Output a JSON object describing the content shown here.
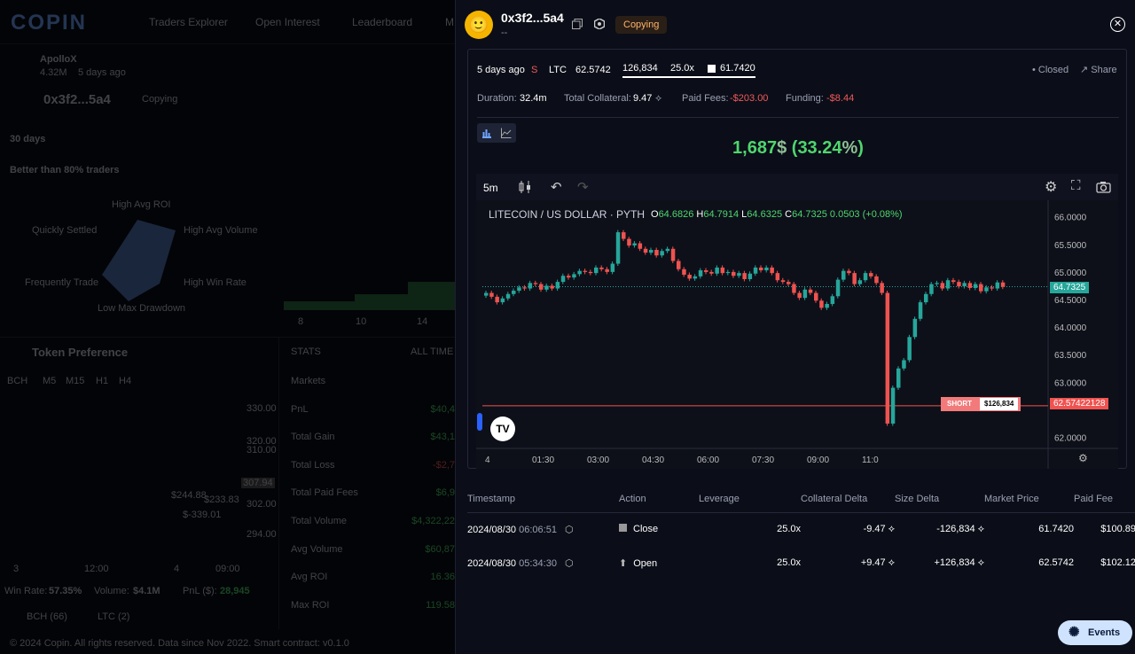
{
  "background": {
    "brand": "COPIN",
    "nav": [
      "Traders Explorer",
      "Open Interest",
      "Leaderboard",
      "M"
    ],
    "protocol": {
      "name": "ApolloX",
      "value": "4.32M",
      "time": "5 days ago"
    },
    "trader": {
      "address": "0x3f2...5a4",
      "copy_label": "Copying"
    },
    "period": "30 days",
    "better_than": "Better than 80% traders",
    "radar_labels": [
      "High Avg ROI",
      "Quickly Settled",
      "High Avg Volume",
      "Frequently Trade",
      "High Win Rate",
      "Low Max Drawdown"
    ],
    "area_ticks": [
      "8",
      "10",
      "14"
    ],
    "token_pref_title": "Token Preference",
    "mini_intervals": [
      "BCH",
      "M5",
      "M15",
      "H1",
      "H4"
    ],
    "mini_prices": [
      "330.00",
      "320.00",
      "310.00",
      "307.94",
      "302.00",
      "294.00"
    ],
    "mini_labels": [
      "$244.88",
      "$233.83",
      "$-339.01"
    ],
    "mini_xticks": [
      "3",
      "12:00",
      "4",
      "09:00"
    ],
    "stats_tab": "STATS",
    "all_time": "ALL TIME",
    "stats": [
      {
        "label": "Markets",
        "value": ""
      },
      {
        "label": "PnL",
        "value": "$40,4"
      },
      {
        "label": "Total Gain",
        "value": "$43,1"
      },
      {
        "label": "Total Loss",
        "value": "-$2,7"
      },
      {
        "label": "Total Paid Fees",
        "value": "$6,9"
      },
      {
        "label": "Total Volume",
        "value": "$4,322,22"
      },
      {
        "label": "Avg Volume",
        "value": "$60,87"
      },
      {
        "label": "Avg ROI",
        "value": "16.36"
      },
      {
        "label": "Max ROI",
        "value": "119.58"
      }
    ],
    "summary": {
      "win_rate_label": "Win Rate:",
      "win_rate": "57.35%",
      "volume_label": "Volume:",
      "volume": "$4.1M",
      "pnl_label": "PnL ($):",
      "pnl": "28,945"
    },
    "token_chips": [
      {
        "name": "BCH",
        "count": "(66)"
      },
      {
        "name": "LTC",
        "count": "(2)"
      }
    ],
    "footer": "© 2024 Copin. All rights reserved. Data since Nov 2022. Smart contract: v0.1.0"
  },
  "panel": {
    "address": "0x3f2...5a4",
    "subtitle": "--",
    "copy_badge": "Copying",
    "position": {
      "time": "5 days ago",
      "side": "S",
      "pair": "LTC",
      "entry": "62.5742",
      "size": "126,834",
      "leverage": "25.0x",
      "liq": "61.7420",
      "status": "Closed",
      "share": "Share"
    },
    "details": {
      "duration_label": "Duration:",
      "duration": "32.4m",
      "collateral_label": "Total Collateral:",
      "collateral": "9.47",
      "fees_label": "Paid Fees:",
      "fees": "-$203.00",
      "funding_label": "Funding:",
      "funding": "-$8.44"
    },
    "pnl": {
      "value": "1,687",
      "currency": "$",
      "roi": "33.24"
    },
    "chart_toolbar": {
      "interval": "5m"
    },
    "chart_legend": {
      "title": "LITECOIN / US DOLLAR · PYTH",
      "o_label": "O",
      "o": "64.6826",
      "h_label": "H",
      "h": "64.7914",
      "l_label": "L",
      "l": "64.6325",
      "c_label": "C",
      "c": "64.7325",
      "change": "0.0503 (+0.08%)"
    },
    "short_tag": {
      "label": "SHORT",
      "size": "$126,834"
    },
    "last_price_tag": "64.7325",
    "entry_price_tag": "62.57422128",
    "colors": {
      "up": "#26a69a",
      "down": "#ef5350",
      "green_profit": "#4fd66e",
      "bg": "#0b0e18"
    }
  },
  "chart_data": {
    "type": "candlestick",
    "title": "LITECOIN / US DOLLAR · PYTH",
    "ylim": [
      61.8,
      66.3
    ],
    "yticks": [
      "66.0000",
      "65.5000",
      "65.0000",
      "64.5000",
      "64.0000",
      "63.5000",
      "63.0000",
      "62.0000"
    ],
    "ytick_values": [
      66.0,
      65.5,
      65.0,
      64.5,
      64.0,
      63.5,
      63.0,
      62.0
    ],
    "xticks": [
      "4",
      "01:30",
      "03:00",
      "04:30",
      "06:00",
      "07:30",
      "09:00",
      "11:0"
    ],
    "x_tick_index": [
      0,
      10,
      20,
      30,
      40,
      50,
      60,
      70
    ],
    "close_line": 64.7325,
    "entry_line": 62.5742,
    "closes": [
      64.62,
      64.55,
      64.45,
      64.52,
      64.6,
      64.66,
      64.72,
      64.7,
      64.8,
      64.78,
      64.68,
      64.75,
      64.7,
      64.82,
      64.93,
      64.9,
      64.96,
      65.02,
      65.0,
      64.98,
      65.08,
      65.05,
      65.0,
      65.15,
      65.72,
      65.6,
      65.48,
      65.52,
      65.42,
      65.35,
      65.4,
      65.3,
      65.38,
      65.42,
      65.2,
      65.05,
      64.95,
      64.88,
      64.92,
      65.03,
      65.0,
      64.97,
      65.08,
      64.98,
      65.0,
      64.93,
      64.98,
      64.87,
      64.97,
      65.08,
      65.03,
      65.08,
      64.98,
      64.85,
      64.82,
      64.78,
      64.62,
      64.53,
      64.68,
      64.62,
      64.48,
      64.35,
      64.42,
      64.56,
      64.86,
      65.02,
      64.98,
      64.78,
      64.85,
      64.98,
      64.92,
      64.8,
      64.62,
      62.25,
      62.9,
      63.25,
      63.4,
      63.82,
      64.15,
      64.45,
      64.6,
      64.78,
      64.8,
      64.7,
      64.85,
      64.82,
      64.74,
      64.8,
      64.71,
      64.78,
      64.65,
      64.72,
      64.7,
      64.81,
      64.73
    ]
  },
  "trades": {
    "headers": [
      "Timestamp",
      "Action",
      "Leverage",
      "Collateral Delta",
      "Size Delta",
      "Market Price",
      "Paid Fee"
    ],
    "rows": [
      {
        "date": "2024/08/30",
        "time": "06:06:51",
        "action": "Close",
        "leverage": "25.0x",
        "collateral": "-9.47",
        "size": "-126,834",
        "price": "61.7420",
        "fee": "$100.89"
      },
      {
        "date": "2024/08/30",
        "time": "05:34:30",
        "action": "Open",
        "leverage": "25.0x",
        "collateral": "+9.47",
        "size": "+126,834",
        "price": "62.5742",
        "fee": "$102.12"
      }
    ]
  },
  "events_button": "Events"
}
